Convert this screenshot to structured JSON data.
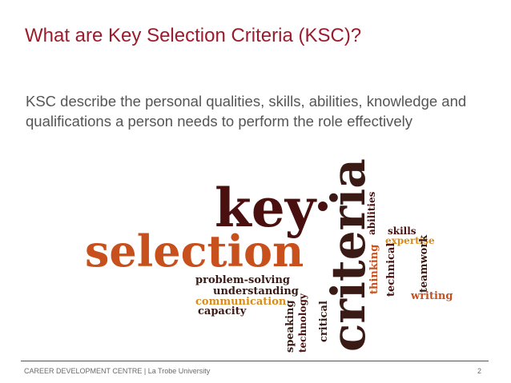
{
  "slide": {
    "title": "What are Key Selection Criteria (KSC)?",
    "body": "KSC describe the personal qualities, skills, abilities, knowledge and qualifications a person needs to perform the role effectively"
  },
  "word_cloud": {
    "words": {
      "key": "key",
      "selection": "selection",
      "criteria": "criteria",
      "abilities": "abilities",
      "skills": "skills",
      "expertise": "expertise",
      "thinking": "thinking",
      "technical": "technical",
      "teamwork": "teamwork",
      "writing": "writing",
      "problem_solving": "problem-solving",
      "understanding": "understanding",
      "communication": "communication",
      "capacity": "capacity",
      "speaking": "speaking",
      "technology": "technology",
      "critical": "critical"
    },
    "colors": {
      "dark_red": "#4a1010",
      "orange": "#c8501c",
      "gold": "#d98c1a",
      "dark_brown": "#3a1a14"
    }
  },
  "footer": {
    "text": "CAREER DEVELOPMENT CENTRE  |  La Trobe University",
    "page_number": "2"
  }
}
